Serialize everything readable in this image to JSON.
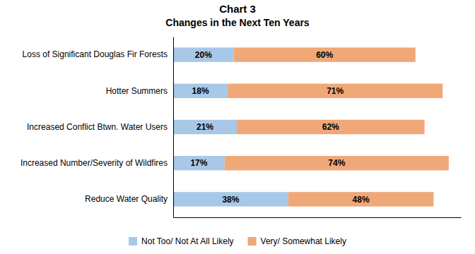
{
  "chart_data": {
    "type": "bar",
    "orientation": "horizontal",
    "stacked": true,
    "title": "Chart 3",
    "subtitle": "Changes in the Next Ten Years",
    "categories": [
      "Loss of Significant Douglas Fir Forests",
      "Hotter Summers",
      "Increased Conflict Btwn. Water Users",
      "Increased Number/Severity of Wildfires",
      "Reduce Water Quality"
    ],
    "series": [
      {
        "name": "Not Too/ Not At All Likely",
        "color": "#a8c8e8",
        "values": [
          20,
          18,
          21,
          17,
          38
        ],
        "value_labels": [
          "20%",
          "18%",
          "21%",
          "17%",
          "38%"
        ]
      },
      {
        "name": "Very/ Somewhat Likely",
        "color": "#f0a878",
        "values": [
          60,
          71,
          62,
          74,
          48
        ],
        "value_labels": [
          "60%",
          "71%",
          "62%",
          "74%",
          "48%"
        ]
      }
    ],
    "xlim": [
      0,
      95
    ],
    "data_labels": true,
    "tick_labels": "y",
    "legend": "bottom"
  }
}
